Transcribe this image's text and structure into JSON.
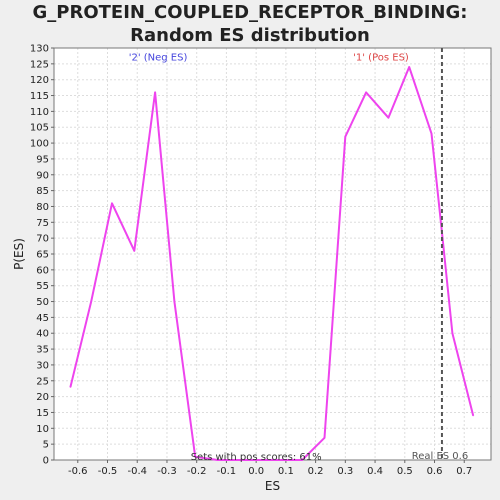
{
  "chart_data": {
    "type": "line",
    "title": "G_PROTEIN_COUPLED_RECEPTOR_BINDING: Random ES distribution",
    "xlabel": "ES",
    "ylabel": "P(ES)",
    "xlim": [
      -0.68,
      0.79
    ],
    "ylim": [
      0,
      130
    ],
    "x_ticks": [
      -0.6,
      -0.5,
      -0.4,
      -0.3,
      -0.2,
      -0.1,
      0.0,
      0.1,
      0.2,
      0.3,
      0.4,
      0.5,
      0.6,
      0.7
    ],
    "x_tick_labels": [
      "-0.6",
      "-0.5",
      "-0.4",
      "-0.3",
      "-0.2",
      "-0.1",
      "0.0",
      "0.1",
      "0.2",
      "0.3",
      "0.4",
      "0.5",
      "0.6",
      "0.7"
    ],
    "y_ticks": [
      0,
      5,
      10,
      15,
      20,
      25,
      30,
      35,
      40,
      45,
      50,
      55,
      60,
      65,
      70,
      75,
      80,
      85,
      90,
      95,
      100,
      105,
      110,
      115,
      120,
      125,
      130
    ],
    "grid": true,
    "series": [
      {
        "color": "#ee44ee",
        "x": [
          -0.625,
          -0.555,
          -0.485,
          -0.41,
          -0.34,
          -0.275,
          -0.205,
          -0.13,
          -0.06,
          0.015,
          0.09,
          0.155,
          0.23,
          0.3,
          0.37,
          0.445,
          0.515,
          0.59,
          0.625,
          0.66,
          0.73
        ],
        "y": [
          23,
          50,
          81,
          66,
          116,
          50,
          1,
          0,
          0,
          0,
          0,
          0,
          7,
          102,
          116,
          108,
          124,
          103,
          72,
          40,
          14
        ]
      }
    ],
    "real_es": {
      "x": 0.625,
      "label": "Real ES 0.6",
      "color": "#555555"
    },
    "annotations": [
      {
        "text": "'2' (Neg ES)",
        "color": "#4444dd",
        "x": -0.33,
        "y": 127
      },
      {
        "text": "'1' (Pos ES)",
        "color": "#dd4444",
        "x": 0.42,
        "y": 127
      },
      {
        "text": "Sets with pos scores: 61%",
        "color": "#333333",
        "x": 0.0,
        "y": 1
      }
    ]
  }
}
